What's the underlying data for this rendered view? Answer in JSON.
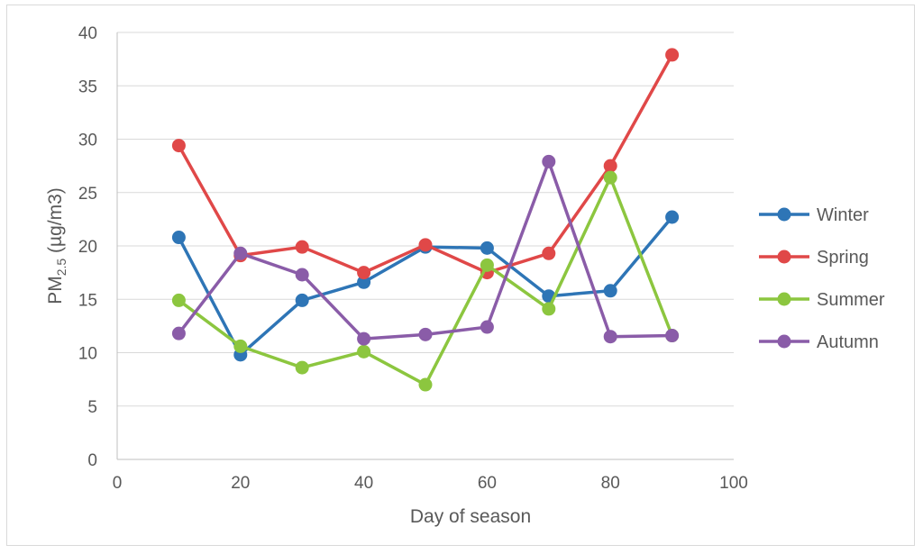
{
  "chart_data": {
    "type": "line",
    "xlabel": "Day of season",
    "ylabel_prefix": "PM",
    "ylabel_sub": "2.5",
    "ylabel_suffix": " (µg/m3)",
    "xlim": [
      0,
      100
    ],
    "ylim": [
      0,
      40
    ],
    "xticks": [
      0,
      20,
      40,
      60,
      80,
      100
    ],
    "yticks": [
      0,
      5,
      10,
      15,
      20,
      25,
      30,
      35,
      40
    ],
    "grid": "horizontal",
    "legend_position": "right",
    "x": [
      10,
      20,
      30,
      40,
      50,
      60,
      70,
      80,
      90
    ],
    "series": [
      {
        "name": "Winter",
        "color": "#2e75b6",
        "values": [
          20.8,
          9.8,
          14.9,
          16.6,
          19.9,
          19.8,
          15.3,
          15.8,
          22.7
        ]
      },
      {
        "name": "Spring",
        "color": "#e04848",
        "values": [
          29.4,
          19.1,
          19.9,
          17.5,
          20.1,
          17.5,
          19.3,
          27.5,
          37.9
        ]
      },
      {
        "name": "Summer",
        "color": "#8cc63f",
        "values": [
          14.9,
          10.6,
          8.6,
          10.1,
          7.0,
          18.2,
          14.1,
          26.4,
          11.6
        ]
      },
      {
        "name": "Autumn",
        "color": "#8a5ca8",
        "values": [
          11.8,
          19.3,
          17.3,
          11.3,
          11.7,
          12.4,
          27.9,
          11.5,
          11.6
        ]
      }
    ]
  }
}
